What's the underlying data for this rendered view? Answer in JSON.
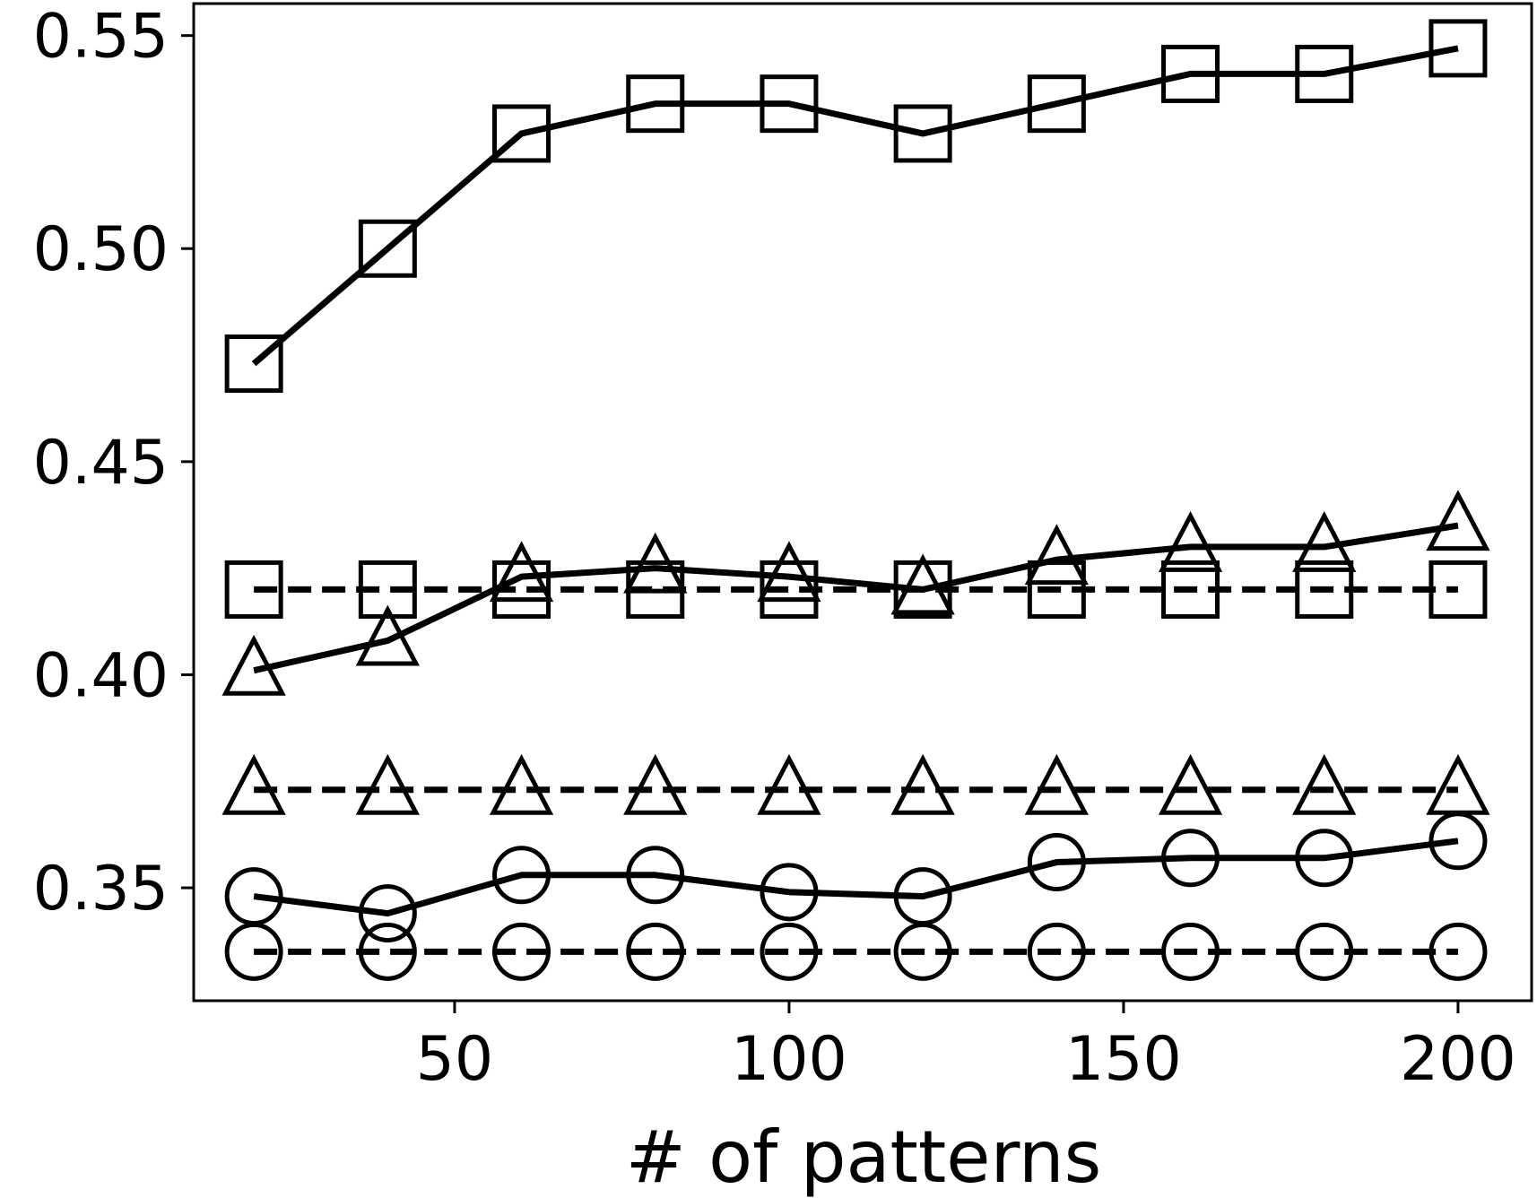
{
  "chart_data": {
    "type": "line",
    "title": "",
    "xlabel": "# of patterns",
    "ylabel": "",
    "xlim": [
      11,
      211
    ],
    "ylim": [
      0.3235,
      0.5575
    ],
    "x_ticks": [
      50,
      100,
      150,
      200
    ],
    "y_ticks": [
      0.35,
      0.4,
      0.45,
      0.5,
      0.55
    ],
    "x_tick_labels": [
      "50",
      "100",
      "150",
      "200"
    ],
    "y_tick_labels": [
      "0.35",
      "0.40",
      "0.45",
      "0.50",
      "0.55"
    ],
    "grid": false,
    "legend": "none",
    "x": [
      20,
      40,
      60,
      80,
      100,
      120,
      140,
      160,
      180,
      200
    ],
    "series": [
      {
        "marker": "square",
        "line": "solid",
        "values": [
          0.473,
          0.5,
          0.527,
          0.534,
          0.534,
          0.527,
          0.534,
          0.541,
          0.541,
          0.547
        ]
      },
      {
        "marker": "square",
        "line": "dashed",
        "values": [
          0.42,
          0.42,
          0.42,
          0.42,
          0.42,
          0.42,
          0.42,
          0.42,
          0.42,
          0.42
        ]
      },
      {
        "marker": "triangle",
        "line": "solid",
        "values": [
          0.401,
          0.408,
          0.423,
          0.425,
          0.423,
          0.42,
          0.427,
          0.43,
          0.43,
          0.435
        ]
      },
      {
        "marker": "triangle",
        "line": "dashed",
        "values": [
          0.373,
          0.373,
          0.373,
          0.373,
          0.373,
          0.373,
          0.373,
          0.373,
          0.373,
          0.373
        ]
      },
      {
        "marker": "circle",
        "line": "solid",
        "values": [
          0.348,
          0.344,
          0.353,
          0.353,
          0.349,
          0.348,
          0.356,
          0.357,
          0.357,
          0.361
        ]
      },
      {
        "marker": "circle",
        "line": "dashed",
        "values": [
          0.335,
          0.335,
          0.335,
          0.335,
          0.335,
          0.335,
          0.335,
          0.335,
          0.335,
          0.335
        ]
      }
    ],
    "colors": {
      "line": "#000000",
      "marker_fill": "none",
      "background": "#ffffff"
    }
  }
}
